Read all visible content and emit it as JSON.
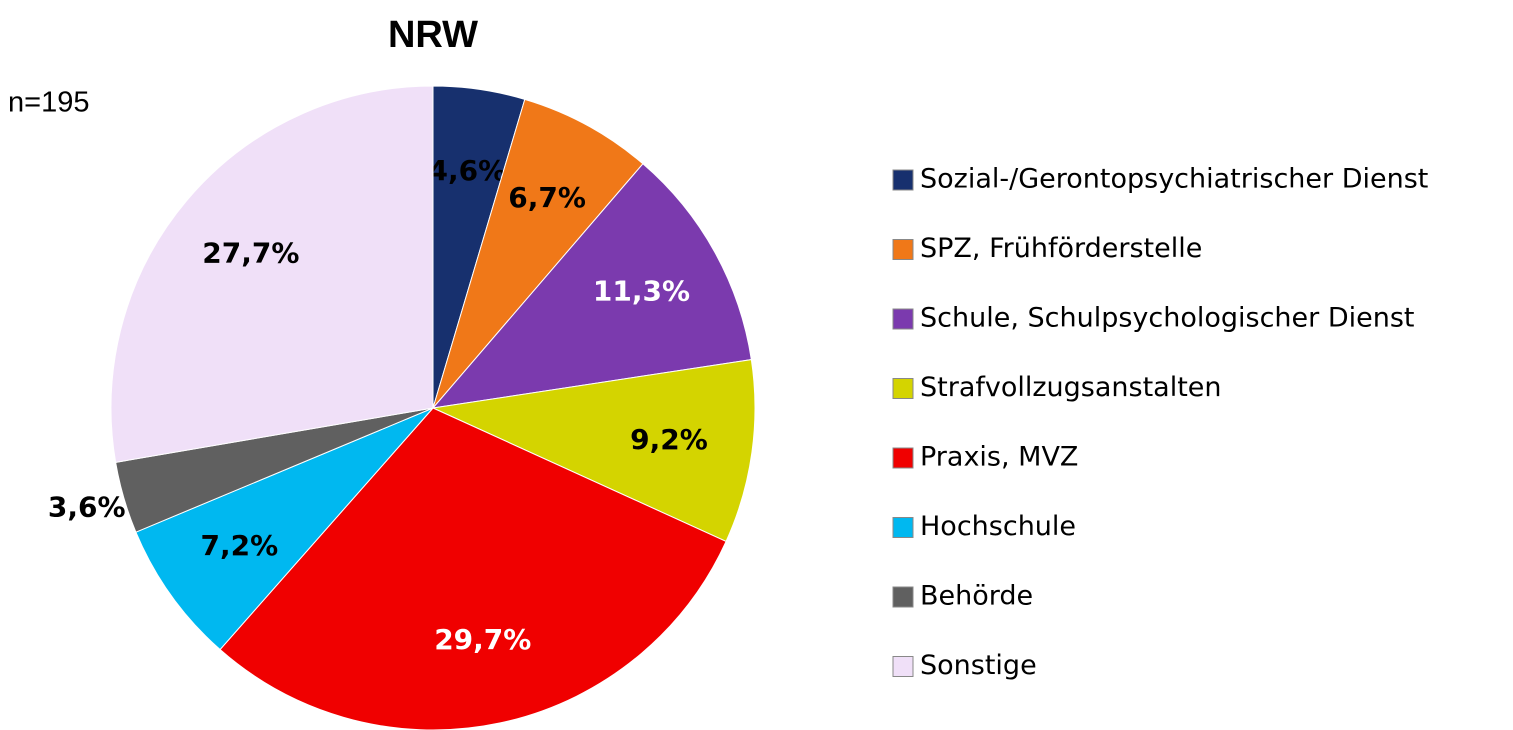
{
  "chart_data": {
    "type": "pie",
    "title": "NRW",
    "subtitle": "n=195",
    "categories": [
      "Sozial-/Gerontopsychiatrischer Dienst",
      "SPZ, Frühförderstelle",
      "Schule, Schulpsychologischer Dienst",
      "Strafvollzugsanstalten",
      "Praxis, MVZ",
      "Hochschule",
      "Behörde",
      "Sonstige"
    ],
    "values": [
      4.6,
      6.7,
      11.3,
      9.2,
      29.7,
      7.2,
      3.6,
      27.7
    ],
    "value_labels": [
      "4,6%",
      "6,7%",
      "11,3%",
      "9,2%",
      "29,7%",
      "7,2%",
      "3,6%",
      "27,7%"
    ],
    "colors": [
      "#17306e",
      "#f07818",
      "#7b3aae",
      "#d4d400",
      "#f00000",
      "#00b8f0",
      "#606060",
      "#f0e0f8"
    ],
    "label_colors": [
      "#000000",
      "#000000",
      "#ffffff",
      "#000000",
      "#ffffff",
      "#000000",
      "#000000",
      "#000000"
    ],
    "legend": "right"
  }
}
